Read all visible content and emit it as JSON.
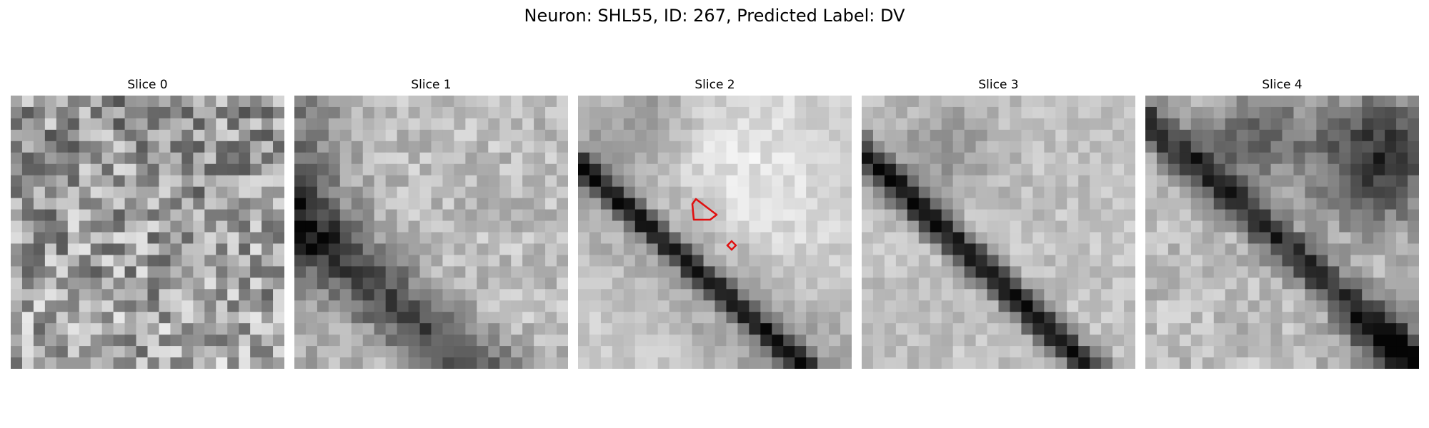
{
  "figure": {
    "title": "Neuron: SHL55, ID: 267, Predicted Label: DV"
  },
  "panels": [
    {
      "title": "Slice 0",
      "has_roi": false
    },
    {
      "title": "Slice 1",
      "has_roi": false
    },
    {
      "title": "Slice 2",
      "has_roi": true
    },
    {
      "title": "Slice 3",
      "has_roi": false
    },
    {
      "title": "Slice 4",
      "has_roi": false
    }
  ],
  "colors": {
    "roi_outline": "#e01010",
    "background": "#ffffff",
    "colormap": "grayscale"
  }
}
